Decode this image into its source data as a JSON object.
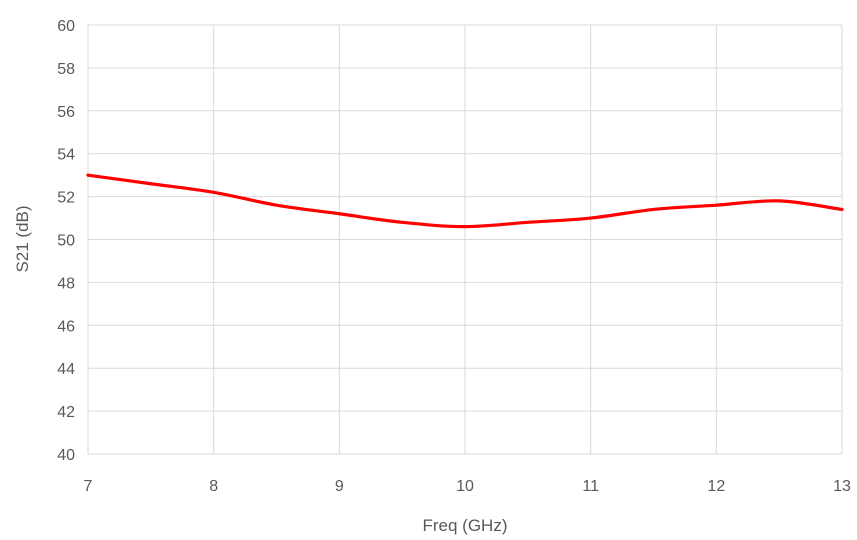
{
  "chart_data": {
    "type": "line",
    "title": "",
    "xlabel": "Freq (GHz)",
    "ylabel": "S21 (dB)",
    "xlim": [
      7,
      13
    ],
    "ylim": [
      40,
      60
    ],
    "xticks": [
      7,
      8,
      9,
      10,
      11,
      12,
      13
    ],
    "yticks": [
      40,
      42,
      44,
      46,
      48,
      50,
      52,
      54,
      56,
      58,
      60
    ],
    "grid": true,
    "legend": "none",
    "series": [
      {
        "color": "#ff0000",
        "x": [
          7,
          7.5,
          8,
          8.5,
          9,
          9.5,
          10,
          10.5,
          11,
          11.5,
          12,
          12.5,
          13
        ],
        "y": [
          53.0,
          52.6,
          52.2,
          51.6,
          51.2,
          50.8,
          50.6,
          50.8,
          51.0,
          51.4,
          51.6,
          51.8,
          51.4
        ]
      }
    ]
  }
}
